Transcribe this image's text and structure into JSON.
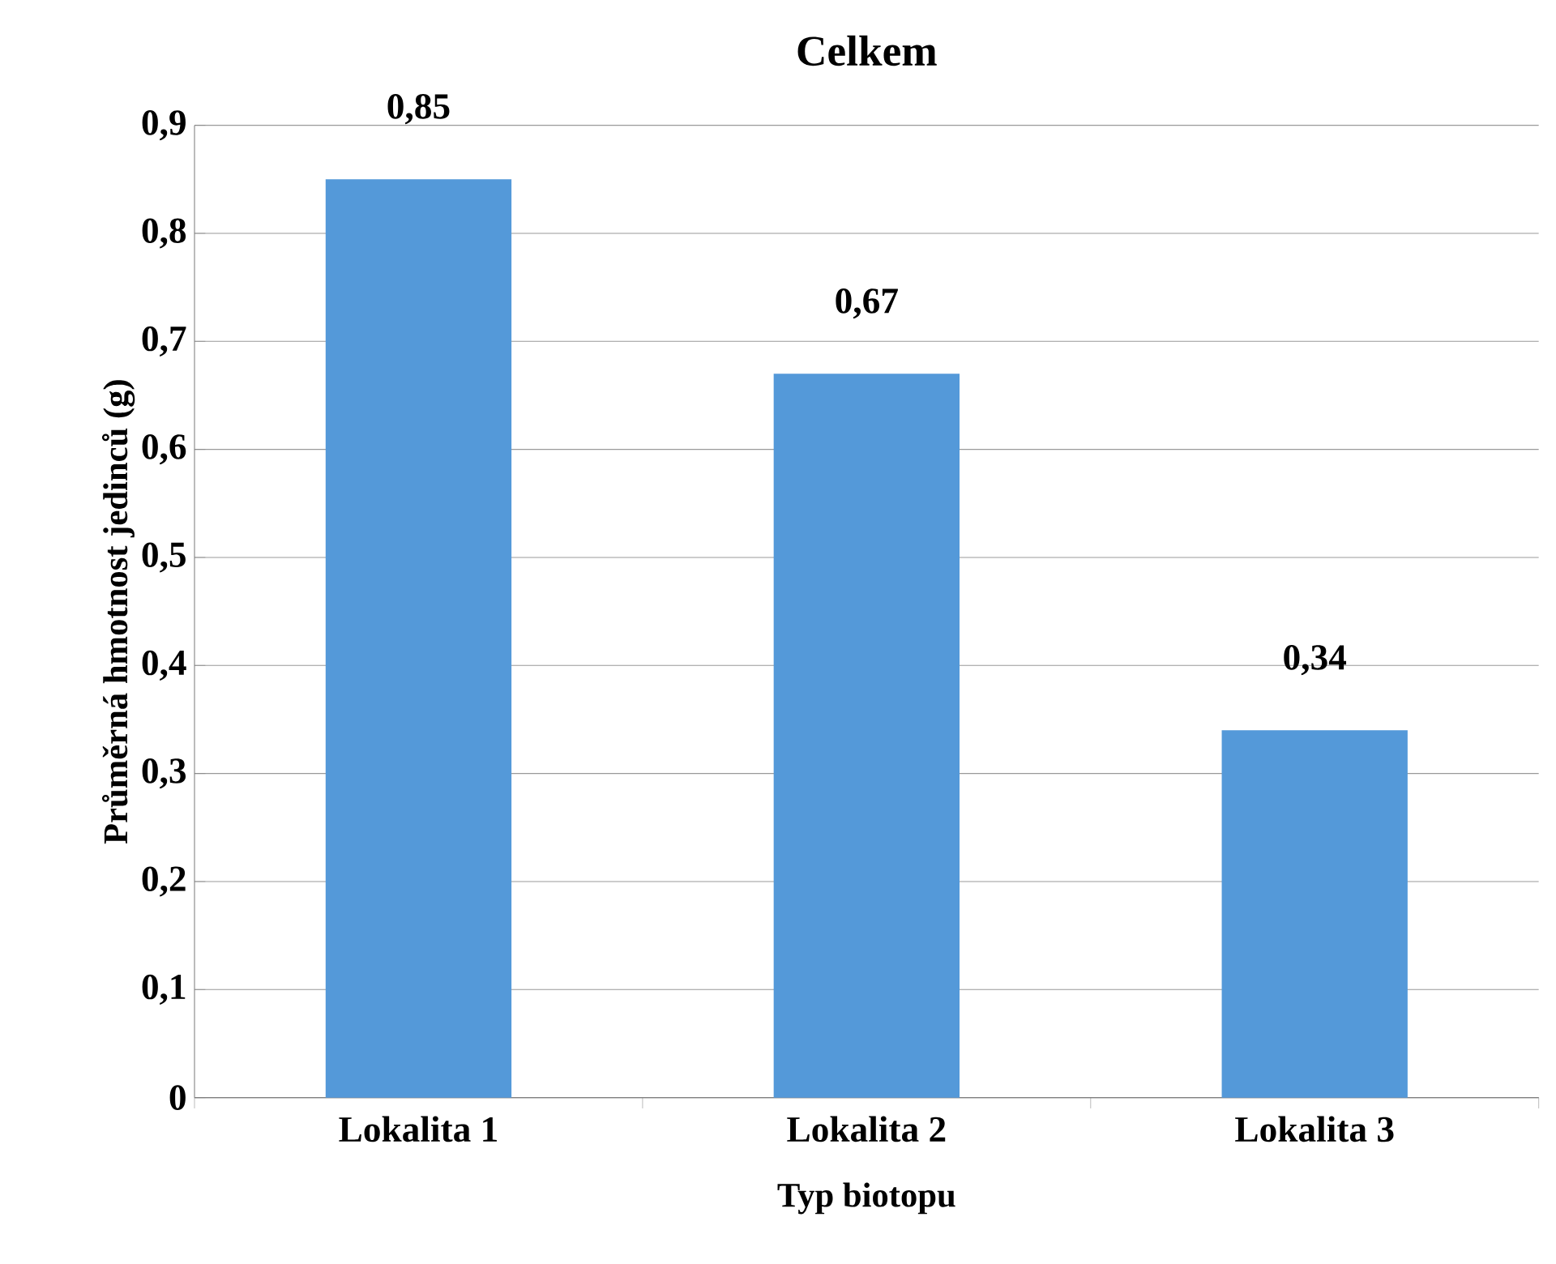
{
  "chart_data": {
    "type": "bar",
    "title": "Celkem",
    "xlabel": "Typ biotopu",
    "ylabel": "Průměrná hmotnost jedinců (g)",
    "categories": [
      "Lokalita 1",
      "Lokalita 2",
      "Lokalita 3"
    ],
    "values": [
      0.85,
      0.67,
      0.34
    ],
    "value_labels": [
      "0,85",
      "0,67",
      "0,34"
    ],
    "color": "#5499d9",
    "ylim": [
      0,
      0.9
    ],
    "yticks": [
      {
        "value": 0,
        "label": "0"
      },
      {
        "value": 0.1,
        "label": "0,1"
      },
      {
        "value": 0.2,
        "label": "0,2"
      },
      {
        "value": 0.3,
        "label": "0,3"
      },
      {
        "value": 0.4,
        "label": "0,4"
      },
      {
        "value": 0.5,
        "label": "0,5"
      },
      {
        "value": 0.6,
        "label": "0,6"
      },
      {
        "value": 0.7,
        "label": "0,7"
      },
      {
        "value": 0.8,
        "label": "0,8"
      },
      {
        "value": 0.9,
        "label": "0,9"
      }
    ],
    "grid": "y"
  }
}
